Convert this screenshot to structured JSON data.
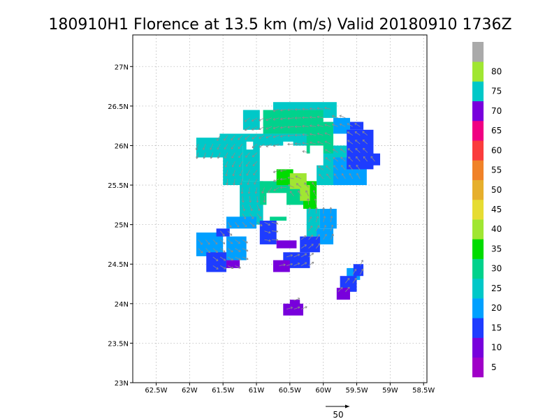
{
  "chart_data": {
    "type": "heatmap",
    "title": "180910H1 Florence at 13.5 km (m/s) Valid 20180910  1736Z",
    "xlim": [
      -62.85,
      -58.45
    ],
    "ylim": [
      23.0,
      27.4
    ],
    "x_ticks": [
      {
        "value": -62.5,
        "label": "62.5W"
      },
      {
        "value": -62.0,
        "label": "62W"
      },
      {
        "value": -61.5,
        "label": "61.5W"
      },
      {
        "value": -61.0,
        "label": "61W"
      },
      {
        "value": -60.5,
        "label": "60.5W"
      },
      {
        "value": -60.0,
        "label": "60W"
      },
      {
        "value": -59.5,
        "label": "59.5W"
      },
      {
        "value": -59.0,
        "label": "59W"
      },
      {
        "value": -58.5,
        "label": "58.5W"
      }
    ],
    "y_ticks": [
      {
        "value": 23.0,
        "label": "23N"
      },
      {
        "value": 23.5,
        "label": "23.5N"
      },
      {
        "value": 24.0,
        "label": "24N"
      },
      {
        "value": 24.5,
        "label": "24.5N"
      },
      {
        "value": 25.0,
        "label": "25N"
      },
      {
        "value": 25.5,
        "label": "25.5N"
      },
      {
        "value": 26.0,
        "label": "26N"
      },
      {
        "value": 26.5,
        "label": "26.5N"
      },
      {
        "value": 27.0,
        "label": "27N"
      }
    ],
    "grid": true,
    "colorbar": {
      "placement": "right",
      "bins": [
        {
          "color": "#a000c8"
        },
        {
          "color": "#7800dc"
        },
        {
          "color": "#1e3cff"
        },
        {
          "color": "#00a0ff"
        },
        {
          "color": "#00c8c8"
        },
        {
          "color": "#00d28c"
        },
        {
          "color": "#00dc00"
        },
        {
          "color": "#a0e632"
        },
        {
          "color": "#e6dc32"
        },
        {
          "color": "#e6af2d"
        },
        {
          "color": "#f08228"
        },
        {
          "color": "#fa3c3c"
        },
        {
          "color": "#f00082"
        },
        {
          "color": "#7800dc"
        },
        {
          "color": "#00c8c8"
        },
        {
          "color": "#a0e632"
        },
        {
          "color": "#aaaaaa"
        }
      ],
      "labels": [
        "5",
        "10",
        "15",
        "20",
        "25",
        "30",
        "35",
        "40",
        "45",
        "50",
        "55",
        "60",
        "65",
        "70",
        "75",
        "80"
      ]
    },
    "regions": [
      {
        "lon0": -61.2,
        "lon1": -60.95,
        "lat0": 25.55,
        "lat1": 26.1,
        "color": "#00c8c8"
      },
      {
        "lon0": -61.55,
        "lon1": -59.9,
        "lat0": 26.0,
        "lat1": 26.15,
        "color": "#00c8c8"
      },
      {
        "lon0": -61.5,
        "lon1": -61.2,
        "lat0": 25.5,
        "lat1": 26.05,
        "color": "#00c8c8"
      },
      {
        "lon0": -61.25,
        "lon1": -60.9,
        "lat0": 25.0,
        "lat1": 25.55,
        "color": "#00c8c8"
      },
      {
        "lon0": -61.9,
        "lon1": -61.4,
        "lat0": 25.85,
        "lat1": 26.1,
        "color": "#00c8c8"
      },
      {
        "lon0": -60.75,
        "lon1": -59.8,
        "lat0": 26.35,
        "lat1": 26.55,
        "color": "#00c8c8"
      },
      {
        "lon0": -60.1,
        "lon1": -59.65,
        "lat0": 25.5,
        "lat1": 26.0,
        "color": "#00c8c8"
      },
      {
        "lon0": -60.25,
        "lon1": -60.05,
        "lat0": 24.85,
        "lat1": 25.2,
        "color": "#00c8c8"
      },
      {
        "lon0": -61.75,
        "lon1": -61.55,
        "lat0": 24.65,
        "lat1": 24.75,
        "color": "#00c8c8"
      },
      {
        "lon0": -61.2,
        "lon1": -60.95,
        "lat0": 26.2,
        "lat1": 26.45,
        "color": "#00c8c8"
      },
      {
        "lon0": -60.9,
        "lon1": -60.0,
        "lat0": 26.15,
        "lat1": 26.45,
        "color": "#00d28c"
      },
      {
        "lon0": -60.25,
        "lon1": -59.85,
        "lat0": 25.9,
        "lat1": 26.3,
        "color": "#00d28c"
      },
      {
        "lon0": -60.95,
        "lon1": -60.3,
        "lat0": 25.25,
        "lat1": 25.55,
        "color": "#00d28c"
      },
      {
        "lon0": -60.8,
        "lon1": -60.55,
        "lat0": 25.05,
        "lat1": 25.3,
        "color": "#00d28c"
      },
      {
        "lon0": -60.7,
        "lon1": -60.45,
        "lat0": 25.5,
        "lat1": 25.7,
        "color": "#00dc00"
      },
      {
        "lon0": -60.3,
        "lon1": -60.1,
        "lat0": 25.2,
        "lat1": 25.55,
        "color": "#00dc00"
      },
      {
        "lon0": -60.5,
        "lon1": -60.25,
        "lat0": 25.45,
        "lat1": 25.65,
        "color": "#a0e632"
      },
      {
        "lon0": -60.35,
        "lon1": -60.2,
        "lat0": 25.3,
        "lat1": 25.5,
        "color": "#a0e632"
      },
      {
        "lon0": -59.85,
        "lon1": -59.6,
        "lat0": 26.15,
        "lat1": 26.35,
        "color": "#00a0ff"
      },
      {
        "lon0": -59.85,
        "lon1": -59.35,
        "lat0": 25.5,
        "lat1": 25.85,
        "color": "#00a0ff"
      },
      {
        "lon0": -60.1,
        "lon1": -59.85,
        "lat0": 24.75,
        "lat1": 24.95,
        "color": "#00a0ff"
      },
      {
        "lon0": -61.9,
        "lon1": -61.5,
        "lat0": 24.6,
        "lat1": 24.9,
        "color": "#00a0ff"
      },
      {
        "lon0": -61.45,
        "lon1": -61.15,
        "lat0": 24.55,
        "lat1": 24.85,
        "color": "#00a0ff"
      },
      {
        "lon0": -61.45,
        "lon1": -61.0,
        "lat0": 24.95,
        "lat1": 25.1,
        "color": "#00a0ff"
      },
      {
        "lon0": -60.05,
        "lon1": -59.8,
        "lat0": 24.95,
        "lat1": 25.2,
        "color": "#00a0ff"
      },
      {
        "lon0": -59.65,
        "lon1": -59.45,
        "lat0": 24.3,
        "lat1": 24.45,
        "color": "#00a0ff"
      },
      {
        "lon0": -59.65,
        "lon1": -59.25,
        "lat0": 25.7,
        "lat1": 26.2,
        "color": "#1e3cff"
      },
      {
        "lon0": -59.35,
        "lon1": -59.15,
        "lat0": 25.75,
        "lat1": 25.9,
        "color": "#1e3cff"
      },
      {
        "lon0": -59.6,
        "lon1": -59.4,
        "lat0": 26.2,
        "lat1": 26.3,
        "color": "#1e3cff"
      },
      {
        "lon0": -60.95,
        "lon1": -60.7,
        "lat0": 24.75,
        "lat1": 25.05,
        "color": "#1e3cff"
      },
      {
        "lon0": -60.35,
        "lon1": -60.05,
        "lat0": 24.65,
        "lat1": 24.85,
        "color": "#1e3cff"
      },
      {
        "lon0": -61.75,
        "lon1": -61.45,
        "lat0": 24.4,
        "lat1": 24.65,
        "color": "#1e3cff"
      },
      {
        "lon0": -61.6,
        "lon1": -61.4,
        "lat0": 24.85,
        "lat1": 24.95,
        "color": "#1e3cff"
      },
      {
        "lon0": -60.6,
        "lon1": -60.2,
        "lat0": 24.45,
        "lat1": 24.65,
        "color": "#1e3cff"
      },
      {
        "lon0": -59.75,
        "lon1": -59.5,
        "lat0": 24.15,
        "lat1": 24.35,
        "color": "#1e3cff"
      },
      {
        "lon0": -59.55,
        "lon1": -59.4,
        "lat0": 24.35,
        "lat1": 24.5,
        "color": "#1e3cff"
      },
      {
        "lon0": -61.45,
        "lon1": -61.25,
        "lat0": 24.45,
        "lat1": 24.55,
        "color": "#7800dc"
      },
      {
        "lon0": -60.7,
        "lon1": -60.4,
        "lat0": 24.7,
        "lat1": 24.8,
        "color": "#7800dc"
      },
      {
        "lon0": -60.75,
        "lon1": -60.5,
        "lat0": 24.4,
        "lat1": 24.55,
        "color": "#7800dc"
      },
      {
        "lon0": -59.8,
        "lon1": -59.6,
        "lat0": 24.05,
        "lat1": 24.2,
        "color": "#7800dc"
      },
      {
        "lon0": -60.6,
        "lon1": -60.3,
        "lat0": 23.85,
        "lat1": 24.0,
        "color": "#7800dc"
      },
      {
        "lon0": -60.5,
        "lon1": -60.35,
        "lat0": 23.95,
        "lat1": 24.05,
        "color": "#7800dc"
      }
    ],
    "holes": [
      {
        "lon0": -60.85,
        "lon1": -60.55,
        "lat0": 25.1,
        "lat1": 25.4
      },
      {
        "lon0": -61.15,
        "lon1": -61.05,
        "lat0": 25.95,
        "lat1": 26.05
      },
      {
        "lon0": -60.2,
        "lon1": -60.0,
        "lat0": 25.75,
        "lat1": 26.0
      },
      {
        "lon0": -60.6,
        "lon1": -60.45,
        "lat0": 25.9,
        "lat1": 26.05
      }
    ],
    "vector_field": {
      "center": [
        -60.6,
        25.3
      ],
      "reference_label": "50"
    }
  }
}
